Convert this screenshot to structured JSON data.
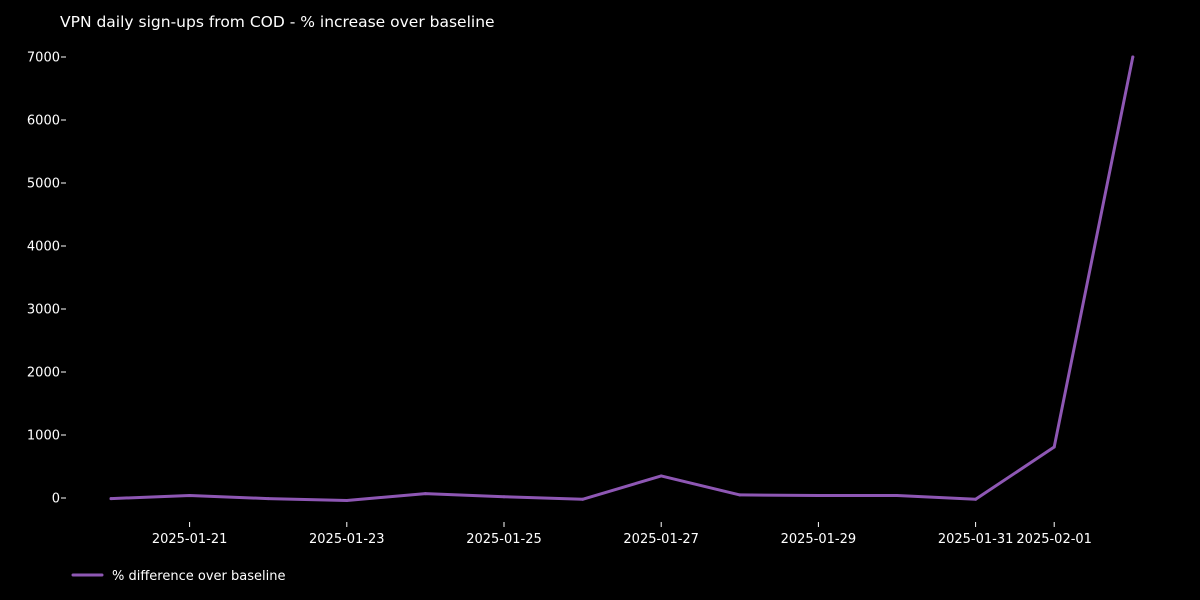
{
  "chart_data": {
    "type": "line",
    "title": "VPN daily sign-ups from COD - % increase over baseline",
    "xlabel": "",
    "ylabel": "",
    "x": [
      "2025-01-20",
      "2025-01-21",
      "2025-01-22",
      "2025-01-23",
      "2025-01-24",
      "2025-01-25",
      "2025-01-26",
      "2025-01-27",
      "2025-01-28",
      "2025-01-29",
      "2025-01-30",
      "2025-01-31",
      "2025-02-01",
      "2025-02-02"
    ],
    "series": [
      {
        "name": "% difference over baseline",
        "color": "#8e57b4",
        "values": [
          -10,
          40,
          -10,
          -40,
          70,
          20,
          -20,
          350,
          50,
          40,
          40,
          -20,
          810,
          7000
        ]
      }
    ],
    "x_ticks": [
      "2025-01-21",
      "2025-01-23",
      "2025-01-25",
      "2025-01-27",
      "2025-01-29",
      "2025-01-31",
      "2025-02-01"
    ],
    "y_ticks": [
      0,
      1000,
      2000,
      3000,
      4000,
      5000,
      6000,
      7000
    ],
    "ylim": [
      -400,
      7350
    ],
    "grid": false,
    "legend_position": "bottom-left",
    "background": "#000000",
    "text_color": "#ffffff"
  }
}
